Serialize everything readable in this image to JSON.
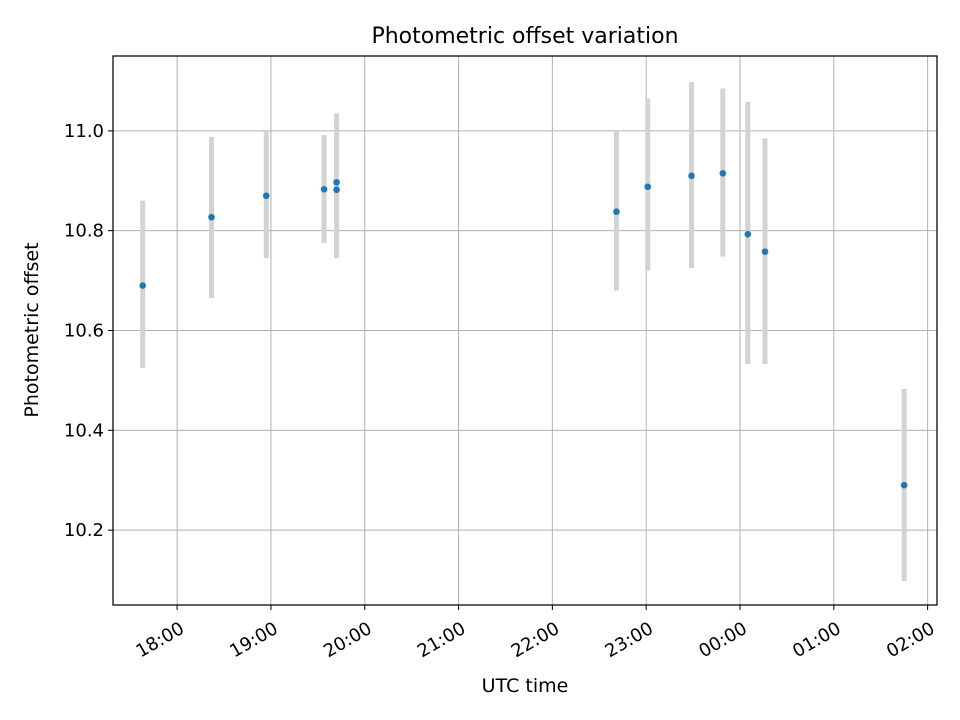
{
  "chart_data": {
    "type": "scatter",
    "title": "Photometric offset variation",
    "xlabel": "UTC time",
    "ylabel": "Photometric offset",
    "x_axis_kind": "time",
    "xlim": [
      "17:19",
      "02:06"
    ],
    "ylim": [
      10.05,
      11.15
    ],
    "x_tick_labels": [
      "18:00",
      "19:00",
      "20:00",
      "21:00",
      "22:00",
      "23:00",
      "00:00",
      "01:00",
      "02:00"
    ],
    "x_ticks": [
      "18:00",
      "19:00",
      "20:00",
      "21:00",
      "22:00",
      "23:00",
      "00:00",
      "01:00",
      "02:00"
    ],
    "y_ticks": [
      10.2,
      10.4,
      10.6,
      10.8,
      11.0
    ],
    "y_tick_labels": [
      "10.2",
      "10.4",
      "10.6",
      "10.8",
      "11.0"
    ],
    "grid": true,
    "series": [
      {
        "marker_color": "#1f77b4",
        "errorbar_color": "#d3d3d3",
        "points": [
          {
            "time": "17:38",
            "value": 10.69,
            "err_low": 10.525,
            "err_high": 10.86
          },
          {
            "time": "18:22",
            "value": 10.827,
            "err_low": 10.665,
            "err_high": 10.988
          },
          {
            "time": "18:57",
            "value": 10.87,
            "err_low": 10.745,
            "err_high": 11.0
          },
          {
            "time": "19:34",
            "value": 10.883,
            "err_low": 10.775,
            "err_high": 10.992
          },
          {
            "time": "19:42",
            "value": 10.897,
            "err_low": 10.745,
            "err_high": 11.035
          },
          {
            "time": "19:42",
            "value": 10.882,
            "err_low": 10.745,
            "err_high": 11.025
          },
          {
            "time": "22:41",
            "value": 10.838,
            "err_low": 10.68,
            "err_high": 11.0
          },
          {
            "time": "23:01",
            "value": 10.888,
            "err_low": 10.72,
            "err_high": 11.065
          },
          {
            "time": "23:29",
            "value": 10.91,
            "err_low": 10.725,
            "err_high": 11.098
          },
          {
            "time": "23:49",
            "value": 10.915,
            "err_low": 10.748,
            "err_high": 11.085
          },
          {
            "time": "00:05",
            "value": 10.793,
            "err_low": 10.533,
            "err_high": 11.058
          },
          {
            "time": "00:16",
            "value": 10.758,
            "err_low": 10.533,
            "err_high": 10.985
          },
          {
            "time": "01:45",
            "value": 10.29,
            "err_low": 10.098,
            "err_high": 10.483
          }
        ]
      }
    ]
  }
}
